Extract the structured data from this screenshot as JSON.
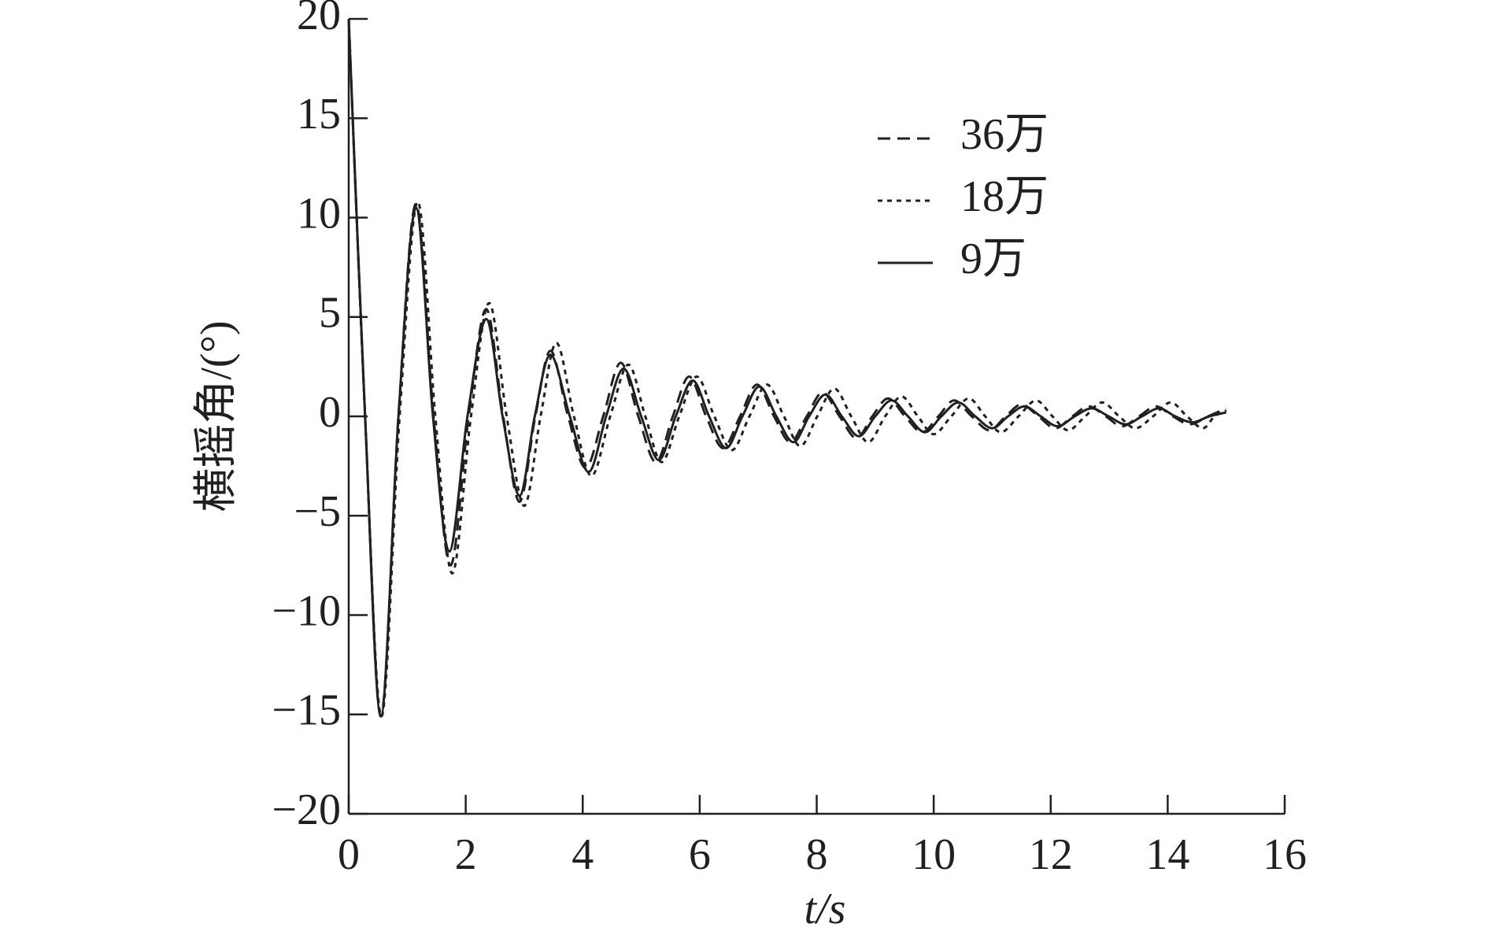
{
  "chart_data": {
    "type": "line",
    "x_label": "t/s",
    "y_label": "横摇角/(°)",
    "xlim": [
      0,
      16
    ],
    "xticks": [
      0,
      2,
      4,
      6,
      8,
      10,
      12,
      14,
      16
    ],
    "ylim": [
      -20,
      20
    ],
    "yticks": [
      {
        "value": -20,
        "label": "−20"
      },
      {
        "value": -15,
        "label": "−15"
      },
      {
        "value": -10,
        "label": "−10"
      },
      {
        "value": -5,
        "label": "−5"
      },
      0,
      5,
      10,
      15,
      20
    ],
    "legend": "upper right",
    "series": [
      {
        "name": "36万",
        "color": "#231f20",
        "dash": "dashed",
        "x": [
          0,
          0.28,
          0.55,
          0.85,
          1.15,
          1.45,
          1.74,
          2.05,
          2.35,
          2.64,
          2.92,
          3.19,
          3.45,
          3.75,
          4.05,
          4.35,
          4.65,
          4.95,
          5.25,
          5.54,
          5.82,
          6.11,
          6.4,
          6.69,
          6.98,
          7.27,
          7.55,
          7.83,
          8.1,
          8.39,
          8.68,
          8.95,
          9.22,
          9.51,
          9.8,
          10.08,
          10.35,
          10.65,
          10.95,
          11.23,
          11.5,
          11.79,
          12.08,
          12.37,
          12.65,
          12.94,
          13.22,
          13.51,
          13.8,
          14.09,
          14.38,
          14.69,
          15
        ],
        "values": [
          20,
          0,
          -15.1,
          0,
          10.7,
          0,
          -7.5,
          0,
          5.4,
          0,
          -4.3,
          0,
          3.3,
          0,
          -2.6,
          0,
          2.7,
          0,
          -2.3,
          0,
          2.0,
          0,
          -1.6,
          0,
          1.6,
          0,
          -1.3,
          0,
          1.2,
          0,
          -1.1,
          0,
          0.9,
          0,
          -0.8,
          0,
          0.8,
          0,
          -0.7,
          0,
          0.6,
          0,
          -0.6,
          0,
          0.5,
          0,
          -0.5,
          0,
          0.5,
          0,
          -0.4,
          0,
          0.4
        ]
      },
      {
        "name": "18万",
        "color": "#231f20",
        "dash": "dotted",
        "x": [
          0,
          0.28,
          0.56,
          0.87,
          1.18,
          1.48,
          1.77,
          2.09,
          2.4,
          2.7,
          3.0,
          3.28,
          3.55,
          3.85,
          4.15,
          4.47,
          4.78,
          5.07,
          5.35,
          5.65,
          5.95,
          6.25,
          6.55,
          6.85,
          7.15,
          7.44,
          7.72,
          8.01,
          8.3,
          8.59,
          8.88,
          9.17,
          9.45,
          9.73,
          10.0,
          10.3,
          10.6,
          10.88,
          11.15,
          11.45,
          11.75,
          12.03,
          12.3,
          12.59,
          12.88,
          13.17,
          13.45,
          13.75,
          14.05,
          14.33,
          14.6,
          14.8,
          15
        ],
        "values": [
          20,
          0,
          -15.1,
          0,
          10.8,
          0,
          -7.9,
          0,
          5.7,
          0,
          -4.5,
          0,
          3.7,
          0,
          -3.0,
          0,
          2.6,
          0,
          -2.3,
          0,
          2.0,
          0,
          -1.7,
          0,
          1.6,
          0,
          -1.5,
          0,
          1.4,
          0,
          -1.3,
          0,
          1.0,
          0,
          -0.9,
          0,
          0.9,
          0,
          -0.8,
          0,
          0.8,
          0,
          -0.7,
          0,
          0.7,
          0,
          -0.6,
          0,
          0.7,
          0,
          -0.6,
          0,
          0.3
        ]
      },
      {
        "name": "9万",
        "color": "#231f20",
        "dash": "solid",
        "x": [
          0,
          0.28,
          0.55,
          0.85,
          1.15,
          1.44,
          1.72,
          2.03,
          2.35,
          2.63,
          2.92,
          3.18,
          3.45,
          3.78,
          4.1,
          4.4,
          4.7,
          5.0,
          5.3,
          5.59,
          5.88,
          6.16,
          6.45,
          6.73,
          7.02,
          7.31,
          7.6,
          7.87,
          8.15,
          8.43,
          8.72,
          9.0,
          9.28,
          9.56,
          9.85,
          10.13,
          10.42,
          10.71,
          11.0,
          11.27,
          11.55,
          11.83,
          12.12,
          12.41,
          12.7,
          12.99,
          13.28,
          13.56,
          13.85,
          14.13,
          14.42,
          14.71,
          15
        ],
        "values": [
          20,
          0,
          -15.1,
          0,
          10.5,
          0,
          -6.8,
          0,
          4.9,
          0,
          -4.0,
          0,
          3.1,
          0,
          -2.8,
          0,
          2.4,
          0,
          -2.2,
          0,
          1.8,
          0,
          -1.6,
          0,
          1.5,
          0,
          -1.3,
          0,
          1.1,
          0,
          -1.0,
          0,
          0.8,
          0,
          -0.8,
          0,
          0.7,
          0,
          -0.6,
          0,
          0.5,
          0,
          -0.5,
          0,
          0.4,
          0,
          -0.4,
          0,
          0.4,
          0,
          -0.3,
          0,
          0.2
        ]
      }
    ]
  }
}
